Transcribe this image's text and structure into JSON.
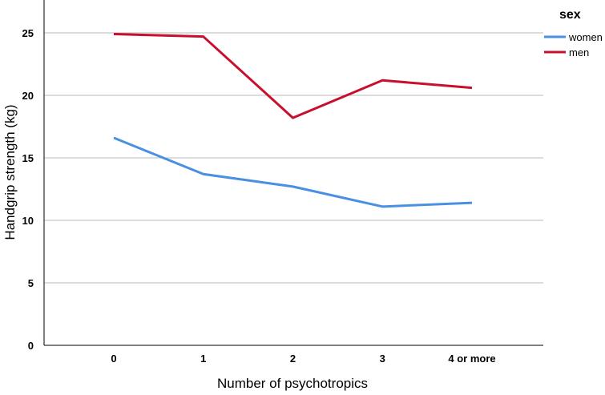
{
  "chart_data": {
    "type": "line",
    "xlabel": "Number of psychotropics",
    "ylabel": "Handgrip strength (kg)",
    "categories": [
      "0",
      "1",
      "2",
      "3",
      "4 or more"
    ],
    "ylim": [
      0,
      27.5
    ],
    "yticks": [
      "0",
      "5",
      "10",
      "15",
      "20",
      "25"
    ],
    "grid": true,
    "legend": {
      "title": "sex",
      "position": "top-right"
    },
    "series": [
      {
        "name": "women",
        "color": "#4a90e2",
        "values": [
          16.6,
          13.7,
          12.7,
          11.1,
          11.4
        ]
      },
      {
        "name": "men",
        "color": "#c8102e",
        "values": [
          24.9,
          24.7,
          18.2,
          21.2,
          20.6
        ]
      }
    ]
  }
}
